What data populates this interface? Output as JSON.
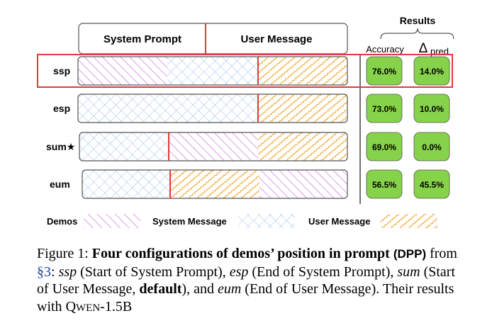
{
  "header": {
    "system_prompt": "System Prompt",
    "user_message": "User Message",
    "results": "Results",
    "accuracy": "Accuracy",
    "delta": "Δ",
    "delta_sub": "pred"
  },
  "rows": [
    {
      "label": "ssp",
      "accuracy": "76.0%",
      "delta": "14.0%"
    },
    {
      "label": "esp",
      "accuracy": "73.0%",
      "delta": "10.0%"
    },
    {
      "label": "sum★",
      "accuracy": "69.0%",
      "delta": "0.0%"
    },
    {
      "label": "eum",
      "accuracy": "56.5%",
      "delta": "45.5%"
    }
  ],
  "legend": {
    "demos": "Demos",
    "system_message": "System Message",
    "user_message": "User Message"
  },
  "caption": {
    "prefix": "Figure 1: ",
    "title": "Four configurations of demos’ position in prompt",
    "dpp": "(DPP)",
    "from": " from ",
    "ref": "§3",
    "colon": ": ",
    "ssp": "ssp",
    "ssp_desc": " (Start of System Prompt), ",
    "esp": "esp",
    "esp_desc": " (End of System Prompt), ",
    "sum": "sum",
    "sum_desc1": " (Start of User Message, ",
    "default": "default",
    "sum_desc2": "), and ",
    "eum": "eum",
    "eum_desc": " (End of User Message). Their results with ",
    "model_q": "Q",
    "model_wen": "WEN",
    "model_ver": "-1.5B"
  },
  "colors": {
    "highlight": "#e03a3a",
    "divider": "#e03a3a",
    "result_box": "#86d24a",
    "demos": "#c64bd8",
    "system": "#8fb8e6",
    "user": "#f0a020"
  }
}
